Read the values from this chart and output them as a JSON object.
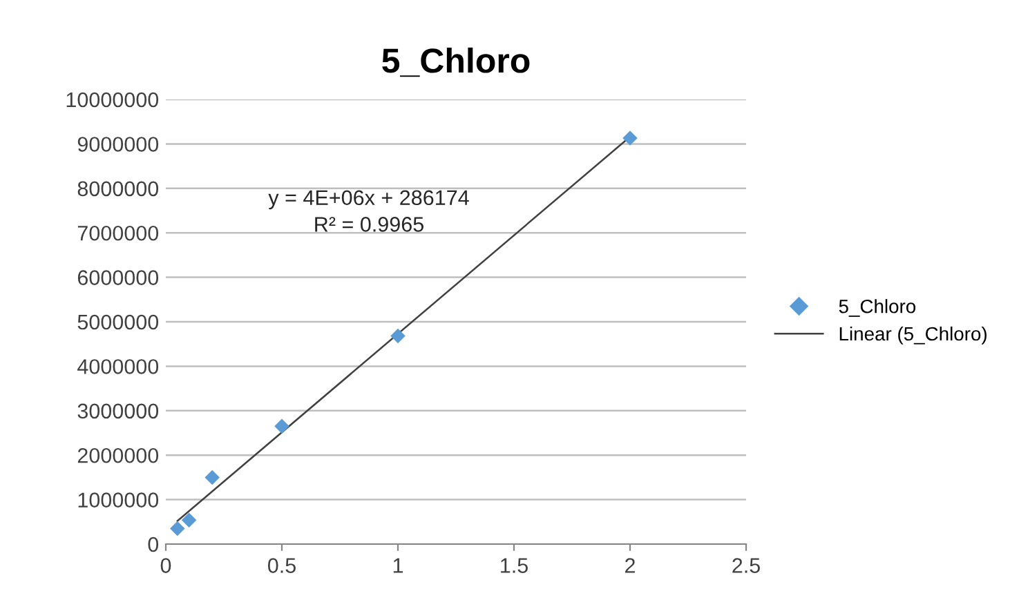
{
  "chart_data": {
    "type": "scatter",
    "title": "5_Chloro",
    "series": [
      {
        "name": "5_Chloro",
        "color": "#5b9bd5",
        "marker": "diamond",
        "x": [
          0.05,
          0.1,
          0.2,
          0.5,
          1,
          2
        ],
        "values": [
          350000,
          540000,
          1500000,
          2650000,
          4680000,
          9130000
        ]
      },
      {
        "name": "Linear (5_Chloro)",
        "type": "line",
        "color": "#404040",
        "marker": "none",
        "line_style": "solid",
        "x": [
          0.05,
          2
        ],
        "values": [
          520000,
          9160000
        ]
      }
    ],
    "annotations": [
      "y = 4E+06x + 286174",
      "R² = 0.9965"
    ],
    "xlim": [
      0,
      2.5
    ],
    "xticks": [
      0,
      0.5,
      1,
      1.5,
      2,
      2.5
    ],
    "ylim": [
      0,
      10000000
    ],
    "yticks": [
      0,
      1000000,
      2000000,
      3000000,
      4000000,
      5000000,
      6000000,
      7000000,
      8000000,
      9000000,
      10000000
    ],
    "grid": "y",
    "legend": "right"
  }
}
